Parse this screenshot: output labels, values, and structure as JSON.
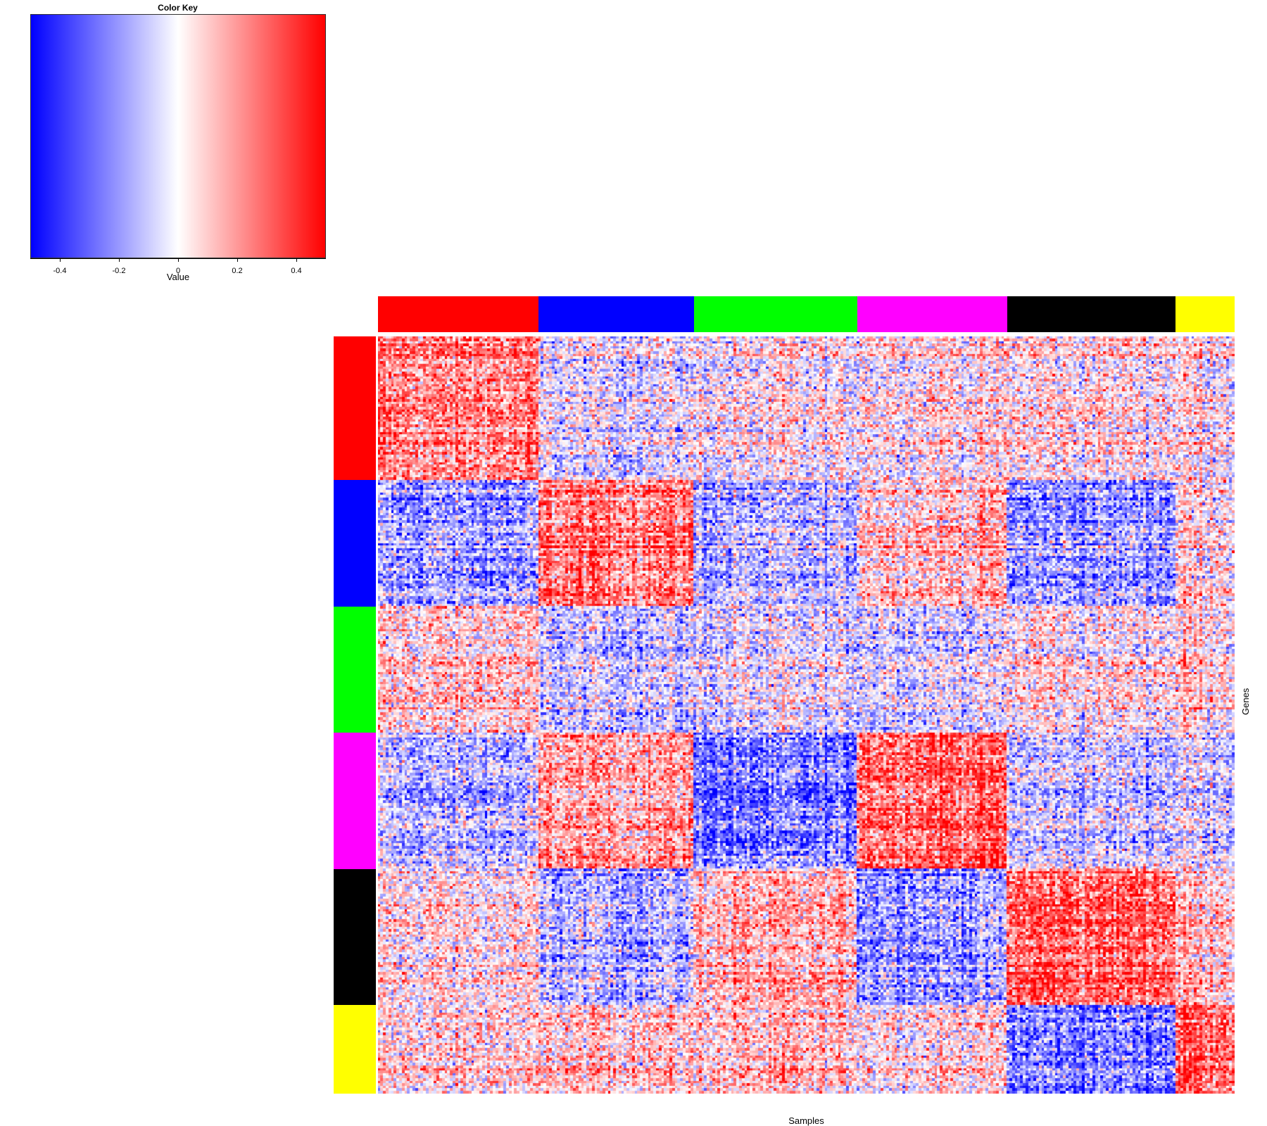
{
  "chart_data": {
    "type": "heatmap",
    "color_key": {
      "title": "Color Key",
      "xlabel": "Value",
      "range": [
        -0.5,
        0.5
      ],
      "ticks": [
        -0.4,
        -0.2,
        0,
        0.2,
        0.4
      ],
      "tick_labels": [
        "-0.4",
        "-0.2",
        "0",
        "0.2",
        "0.4"
      ],
      "colors": [
        "#0000ff",
        "#ffffff",
        "#ff0000"
      ]
    },
    "xlabel": "Samples",
    "ylabel": "Genes",
    "columns": 320,
    "rows": 300,
    "column_groups": [
      {
        "color": "#ff0000",
        "size": 60
      },
      {
        "color": "#0000ff",
        "size": 58
      },
      {
        "color": "#00ff00",
        "size": 61
      },
      {
        "color": "#ff00ff",
        "size": 56
      },
      {
        "color": "#000000",
        "size": 63
      },
      {
        "color": "#ffff00",
        "size": 22
      }
    ],
    "row_groups": [
      {
        "color": "#ff0000",
        "size": 57
      },
      {
        "color": "#0000ff",
        "size": 50
      },
      {
        "color": "#00ff00",
        "size": 50
      },
      {
        "color": "#ff00ff",
        "size": 54
      },
      {
        "color": "#000000",
        "size": 54
      },
      {
        "color": "#ffff00",
        "size": 35
      }
    ],
    "block_pattern": {
      "description": "mean value per (row group, column group) block",
      "values": [
        [
          0.25,
          -0.05,
          0.0,
          0.05,
          0.05,
          0.05
        ],
        [
          -0.2,
          0.3,
          -0.15,
          0.15,
          -0.2,
          0.1
        ],
        [
          0.1,
          -0.1,
          -0.05,
          -0.05,
          0.05,
          0.1
        ],
        [
          -0.15,
          0.2,
          -0.3,
          0.35,
          -0.1,
          -0.05
        ],
        [
          0.05,
          -0.15,
          0.15,
          -0.2,
          0.35,
          0.15
        ],
        [
          0.05,
          0.1,
          0.1,
          0.05,
          -0.3,
          0.35
        ]
      ]
    }
  }
}
